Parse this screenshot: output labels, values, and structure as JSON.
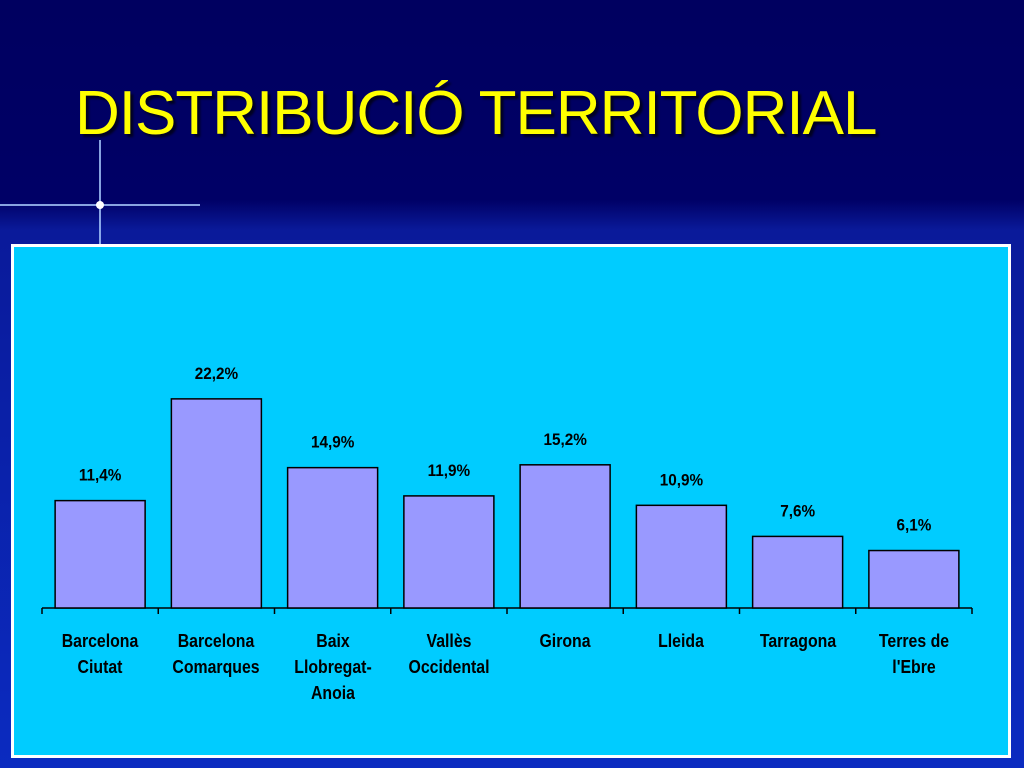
{
  "chart_data": {
    "type": "bar",
    "title": "DISTRIBUCIÓ TERRITORIAL",
    "categories": [
      "Barcelona\nCiutat",
      "Barcelona\nComarques",
      "Baix\nLlobregat-\nAnoia",
      "Vallès\nOccidental",
      "Girona",
      "Lleida",
      "Tarragona",
      "Terres de\nl'Ebre"
    ],
    "values": [
      11.4,
      22.2,
      14.9,
      11.9,
      15.2,
      10.9,
      7.6,
      6.1
    ],
    "value_labels": [
      "11,4%",
      "22,2%",
      "14,9%",
      "11,9%",
      "15,2%",
      "10,9%",
      "7,6%",
      "6,1%"
    ],
    "color": "#9999ff"
  }
}
